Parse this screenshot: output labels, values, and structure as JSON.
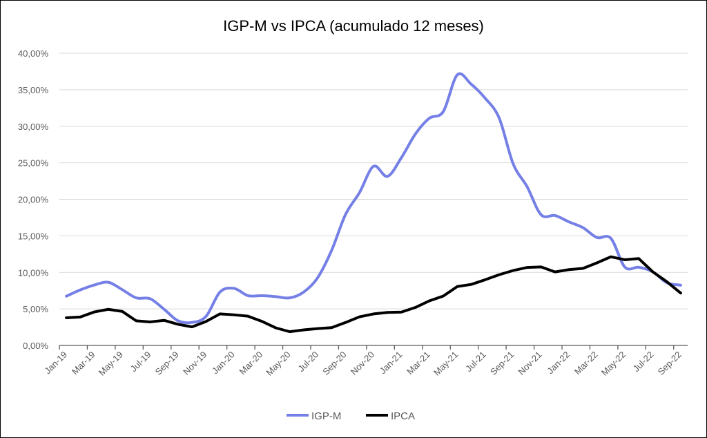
{
  "chart_data": {
    "type": "line",
    "title": "IGP-M vs IPCA (acumulado 12 meses)",
    "xlabel": "",
    "ylabel": "",
    "ylim": [
      0,
      40
    ],
    "yticks": [
      "0,00%",
      "5,00%",
      "10,00%",
      "15,00%",
      "20,00%",
      "25,00%",
      "30,00%",
      "35,00%",
      "40,00%"
    ],
    "grid": true,
    "legend_position": "bottom",
    "categories": [
      "Jan-19",
      "Feb-19",
      "Mar-19",
      "Apr-19",
      "May-19",
      "Jun-19",
      "Jul-19",
      "Aug-19",
      "Sep-19",
      "Oct-19",
      "Nov-19",
      "Dec-19",
      "Jan-20",
      "Feb-20",
      "Mar-20",
      "Apr-20",
      "May-20",
      "Jun-20",
      "Jul-20",
      "Aug-20",
      "Sep-20",
      "Oct-20",
      "Nov-20",
      "Dec-20",
      "Jan-21",
      "Feb-21",
      "Mar-21",
      "Apr-21",
      "May-21",
      "Jun-21",
      "Jul-21",
      "Aug-21",
      "Sep-21",
      "Oct-21",
      "Nov-21",
      "Dec-21",
      "Jan-22",
      "Feb-22",
      "Mar-22",
      "Apr-22",
      "May-22",
      "Jun-22",
      "Jul-22",
      "Aug-22",
      "Sep-22"
    ],
    "series": [
      {
        "name": "IGP-M",
        "color": "#7580e6",
        "smooth": true,
        "values": [
          6.74,
          7.6,
          8.27,
          8.64,
          7.64,
          6.51,
          6.39,
          4.95,
          3.37,
          3.15,
          3.97,
          7.3,
          7.81,
          6.82,
          6.81,
          6.68,
          6.51,
          7.31,
          9.27,
          13.02,
          17.94,
          20.93,
          24.52,
          23.14,
          25.71,
          28.94,
          31.1,
          32.02,
          37.04,
          35.75,
          33.83,
          31.12,
          24.86,
          21.73,
          17.89,
          17.78,
          16.91,
          16.12,
          14.77,
          14.66,
          10.72,
          10.7,
          10.08,
          8.59,
          8.25
        ]
      },
      {
        "name": "IPCA",
        "color": "#000000",
        "smooth": false,
        "values": [
          3.78,
          3.89,
          4.58,
          4.94,
          4.66,
          3.37,
          3.22,
          3.43,
          2.89,
          2.54,
          3.27,
          4.31,
          4.19,
          4.01,
          3.3,
          2.4,
          1.88,
          2.13,
          2.31,
          2.44,
          3.14,
          3.92,
          4.31,
          4.52,
          4.56,
          5.2,
          6.1,
          6.76,
          8.06,
          8.35,
          8.99,
          9.68,
          10.25,
          10.67,
          10.74,
          10.06,
          10.38,
          10.54,
          11.3,
          12.13,
          11.73,
          11.89,
          10.07,
          8.73,
          7.17
        ]
      }
    ]
  }
}
